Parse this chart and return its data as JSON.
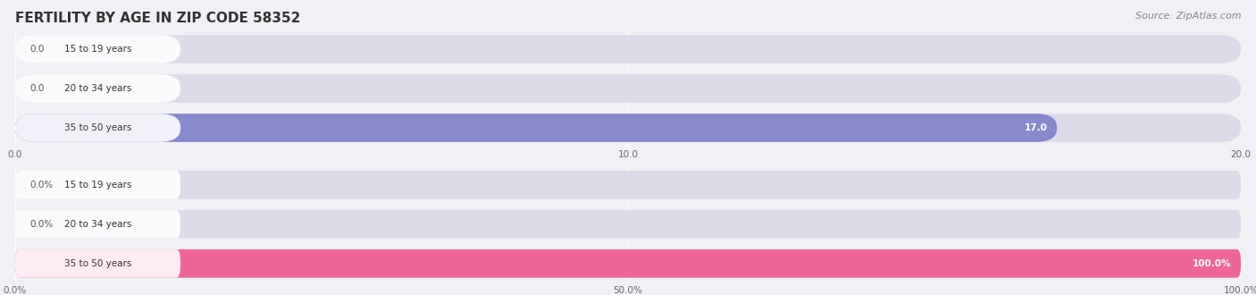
{
  "title": "FERTILITY BY AGE IN ZIP CODE 58352",
  "source": "Source: ZipAtlas.com",
  "top_chart": {
    "categories": [
      "15 to 19 years",
      "20 to 34 years",
      "35 to 50 years"
    ],
    "values": [
      0.0,
      0.0,
      17.0
    ],
    "xlim": [
      0,
      20
    ],
    "xticks": [
      0.0,
      10.0,
      20.0
    ],
    "xticklabels": [
      "0.0",
      "10.0",
      "20.0"
    ],
    "bar_color": "#8888cc",
    "label_color": "#333333",
    "value_color_inside": "#ffffff",
    "value_color_outside": "#555555"
  },
  "bottom_chart": {
    "categories": [
      "15 to 19 years",
      "20 to 34 years",
      "35 to 50 years"
    ],
    "values": [
      0.0,
      0.0,
      100.0
    ],
    "xlim": [
      0,
      100
    ],
    "xticks": [
      0.0,
      50.0,
      100.0
    ],
    "xticklabels": [
      "0.0%",
      "50.0%",
      "100.0%"
    ],
    "bar_color": "#ee6699",
    "label_color": "#333333",
    "value_color_inside": "#ffffff",
    "value_color_outside": "#555555"
  },
  "bg_color": "#f0f0f5",
  "bar_bg_color": "#dcdce8",
  "title_color": "#333333",
  "title_fontsize": 11,
  "source_fontsize": 8,
  "label_fontsize": 7.5,
  "value_fontsize": 7.5
}
